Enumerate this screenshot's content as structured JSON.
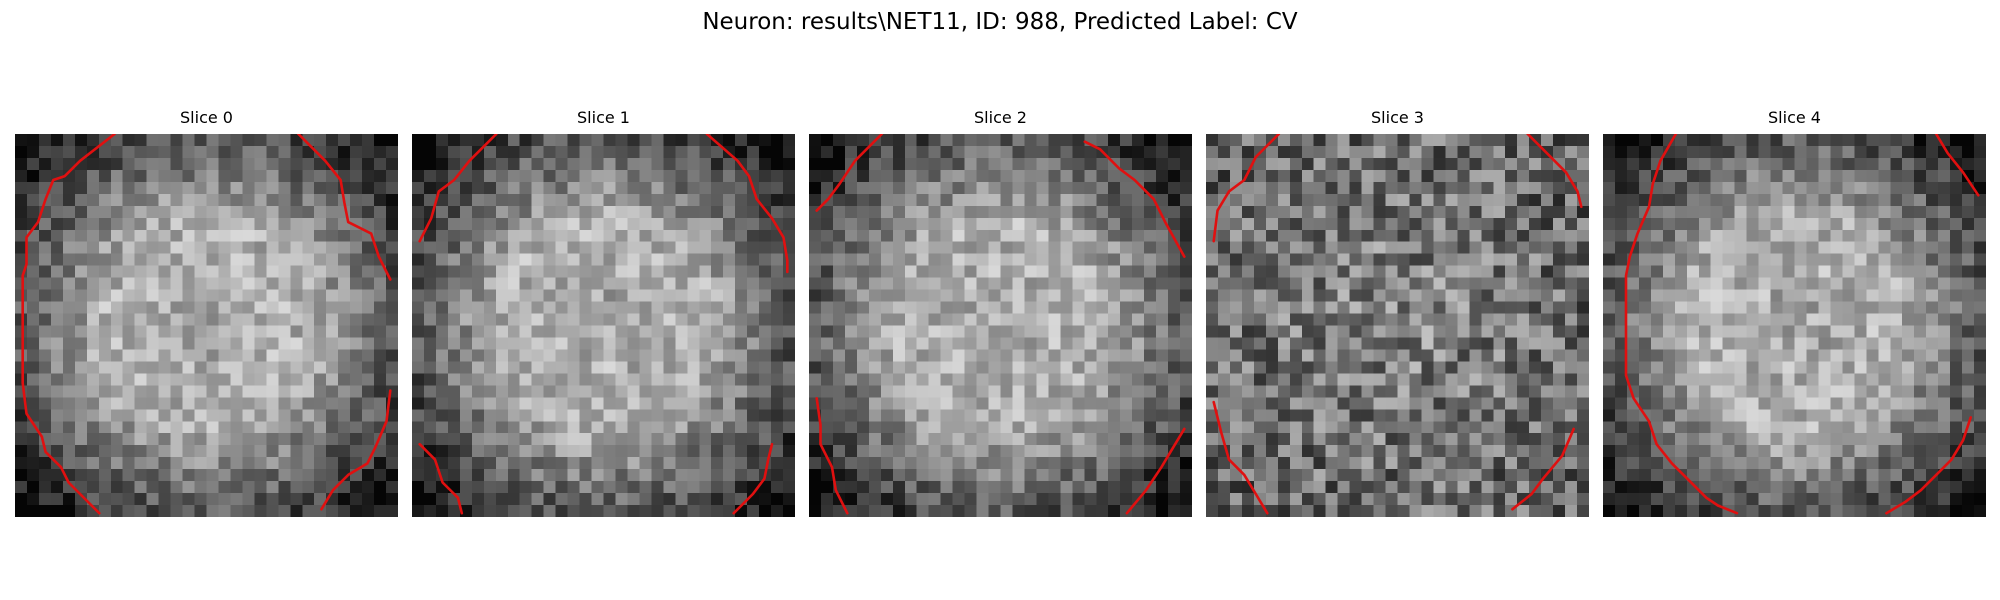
{
  "title": "Neuron: results\\NET11, ID: 988, Predicted Label: CV",
  "slices": [
    {
      "label": "Slice 0",
      "outline_color": "#e01010",
      "seed": 11,
      "profile": "ring",
      "contours": [
        [
          [
            0.26,
            0.0
          ],
          [
            0.17,
            0.07
          ],
          [
            0.13,
            0.11
          ],
          [
            0.1,
            0.12
          ],
          [
            0.08,
            0.17
          ],
          [
            0.06,
            0.23
          ],
          [
            0.03,
            0.27
          ],
          [
            0.03,
            0.34
          ],
          [
            0.02,
            0.37
          ],
          [
            0.02,
            0.65
          ],
          [
            0.03,
            0.73
          ],
          [
            0.07,
            0.79
          ],
          [
            0.08,
            0.83
          ],
          [
            0.12,
            0.87
          ],
          [
            0.14,
            0.91
          ],
          [
            0.22,
            0.99
          ]
        ],
        [
          [
            0.74,
            0.0
          ],
          [
            0.81,
            0.07
          ],
          [
            0.85,
            0.12
          ],
          [
            0.86,
            0.18
          ],
          [
            0.87,
            0.23
          ],
          [
            0.93,
            0.26
          ],
          [
            0.95,
            0.32
          ],
          [
            0.98,
            0.38
          ]
        ],
        [
          [
            0.98,
            0.67
          ],
          [
            0.97,
            0.75
          ],
          [
            0.94,
            0.82
          ],
          [
            0.92,
            0.86
          ],
          [
            0.87,
            0.89
          ],
          [
            0.83,
            0.93
          ],
          [
            0.8,
            0.98
          ]
        ]
      ]
    },
    {
      "label": "Slice 1",
      "outline_color": "#e01010",
      "seed": 23,
      "profile": "ring",
      "contours": [
        [
          [
            0.22,
            0.0
          ],
          [
            0.15,
            0.07
          ],
          [
            0.11,
            0.12
          ],
          [
            0.07,
            0.15
          ],
          [
            0.05,
            0.22
          ],
          [
            0.02,
            0.28
          ]
        ],
        [
          [
            0.77,
            0.0
          ],
          [
            0.85,
            0.07
          ],
          [
            0.88,
            0.11
          ],
          [
            0.9,
            0.17
          ],
          [
            0.94,
            0.22
          ],
          [
            0.97,
            0.27
          ],
          [
            0.98,
            0.33
          ],
          [
            0.98,
            0.36
          ]
        ],
        [
          [
            0.02,
            0.81
          ],
          [
            0.06,
            0.85
          ],
          [
            0.08,
            0.91
          ],
          [
            0.12,
            0.95
          ],
          [
            0.13,
            0.99
          ]
        ],
        [
          [
            0.84,
            0.99
          ],
          [
            0.89,
            0.94
          ],
          [
            0.92,
            0.9
          ],
          [
            0.93,
            0.85
          ],
          [
            0.94,
            0.81
          ]
        ]
      ]
    },
    {
      "label": "Slice 2",
      "outline_color": "#e01010",
      "seed": 37,
      "profile": "ring",
      "contours": [
        [
          [
            0.19,
            0.0
          ],
          [
            0.12,
            0.07
          ],
          [
            0.08,
            0.13
          ],
          [
            0.05,
            0.17
          ],
          [
            0.02,
            0.2
          ]
        ],
        [
          [
            0.72,
            0.02
          ],
          [
            0.76,
            0.04
          ],
          [
            0.81,
            0.09
          ],
          [
            0.85,
            0.12
          ],
          [
            0.9,
            0.17
          ],
          [
            0.93,
            0.23
          ],
          [
            0.98,
            0.32
          ]
        ],
        [
          [
            0.02,
            0.69
          ],
          [
            0.03,
            0.76
          ],
          [
            0.03,
            0.81
          ],
          [
            0.06,
            0.87
          ],
          [
            0.07,
            0.93
          ],
          [
            0.1,
            0.99
          ]
        ],
        [
          [
            0.83,
            0.99
          ],
          [
            0.88,
            0.93
          ],
          [
            0.92,
            0.87
          ],
          [
            0.95,
            0.82
          ],
          [
            0.98,
            0.77
          ]
        ]
      ]
    },
    {
      "label": "Slice 3",
      "outline_color": "#e01010",
      "seed": 51,
      "profile": "noisy",
      "contours": [
        [
          [
            0.19,
            0.0
          ],
          [
            0.13,
            0.06
          ],
          [
            0.1,
            0.12
          ],
          [
            0.06,
            0.15
          ],
          [
            0.03,
            0.2
          ],
          [
            0.02,
            0.28
          ]
        ],
        [
          [
            0.84,
            0.0
          ],
          [
            0.89,
            0.05
          ],
          [
            0.94,
            0.1
          ],
          [
            0.97,
            0.15
          ],
          [
            0.98,
            0.19
          ]
        ],
        [
          [
            0.02,
            0.7
          ],
          [
            0.04,
            0.78
          ],
          [
            0.06,
            0.85
          ],
          [
            0.1,
            0.89
          ],
          [
            0.13,
            0.94
          ],
          [
            0.16,
            0.99
          ]
        ],
        [
          [
            0.8,
            0.98
          ],
          [
            0.85,
            0.94
          ],
          [
            0.88,
            0.9
          ],
          [
            0.93,
            0.84
          ],
          [
            0.96,
            0.77
          ]
        ]
      ]
    },
    {
      "label": "Slice 4",
      "outline_color": "#e01010",
      "seed": 67,
      "profile": "ring",
      "contours": [
        [
          [
            0.19,
            0.0
          ],
          [
            0.15,
            0.07
          ],
          [
            0.13,
            0.13
          ],
          [
            0.12,
            0.19
          ],
          [
            0.09,
            0.26
          ],
          [
            0.07,
            0.32
          ],
          [
            0.06,
            0.37
          ],
          [
            0.06,
            0.63
          ],
          [
            0.08,
            0.69
          ],
          [
            0.12,
            0.75
          ],
          [
            0.14,
            0.81
          ],
          [
            0.18,
            0.86
          ],
          [
            0.22,
            0.9
          ],
          [
            0.27,
            0.95
          ],
          [
            0.3,
            0.97
          ],
          [
            0.35,
            0.99
          ]
        ],
        [
          [
            0.87,
            0.0
          ],
          [
            0.9,
            0.05
          ],
          [
            0.94,
            0.1
          ],
          [
            0.98,
            0.16
          ]
        ],
        [
          [
            0.74,
            0.99
          ],
          [
            0.79,
            0.96
          ],
          [
            0.83,
            0.93
          ],
          [
            0.87,
            0.89
          ],
          [
            0.91,
            0.85
          ],
          [
            0.94,
            0.8
          ],
          [
            0.96,
            0.74
          ]
        ]
      ]
    }
  ]
}
